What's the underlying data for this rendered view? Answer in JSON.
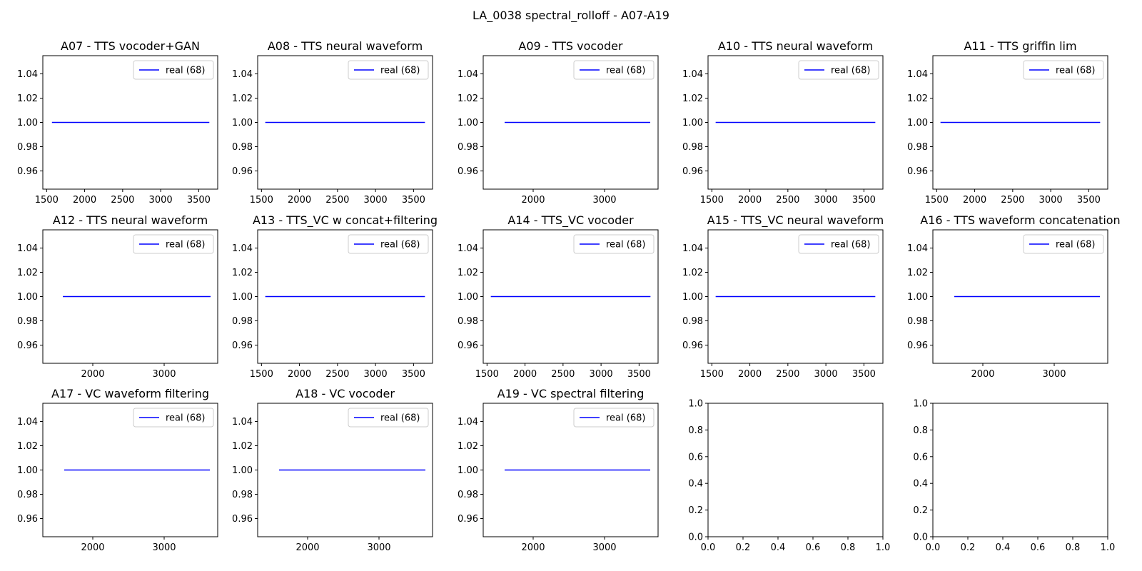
{
  "figure": {
    "title": "LA_0038 spectral_rolloff - A07-A19"
  },
  "chart_data": [
    {
      "type": "line",
      "title": "A07 - TTS vocoder+GAN",
      "xlim": [
        1450,
        3750
      ],
      "ylim": [
        0.945,
        1.055
      ],
      "x_ticks": [
        1500,
        2000,
        2500,
        3000,
        3500
      ],
      "y_ticks": [
        0.96,
        0.98,
        1.0,
        1.02,
        1.04
      ],
      "legend": "upper-right",
      "series": [
        {
          "name": "real (68)",
          "color": "#0000ff",
          "x": [
            1570,
            3640
          ],
          "y": [
            1.0,
            1.0
          ]
        }
      ]
    },
    {
      "type": "line",
      "title": "A08 - TTS neural waveform",
      "xlim": [
        1450,
        3750
      ],
      "ylim": [
        0.945,
        1.055
      ],
      "x_ticks": [
        1500,
        2000,
        2500,
        3000,
        3500
      ],
      "y_ticks": [
        0.96,
        0.98,
        1.0,
        1.02,
        1.04
      ],
      "legend": "upper-right",
      "series": [
        {
          "name": "real (68)",
          "color": "#0000ff",
          "x": [
            1550,
            3650
          ],
          "y": [
            1.0,
            1.0
          ]
        }
      ]
    },
    {
      "type": "line",
      "title": "A09 - TTS vocoder",
      "xlim": [
        1300,
        3750
      ],
      "ylim": [
        0.945,
        1.055
      ],
      "x_ticks": [
        2000,
        3000
      ],
      "y_ticks": [
        0.96,
        0.98,
        1.0,
        1.02,
        1.04
      ],
      "legend": "upper-right",
      "series": [
        {
          "name": "real (68)",
          "color": "#0000ff",
          "x": [
            1600,
            3640
          ],
          "y": [
            1.0,
            1.0
          ]
        }
      ]
    },
    {
      "type": "line",
      "title": "A10 - TTS neural waveform",
      "xlim": [
        1450,
        3750
      ],
      "ylim": [
        0.945,
        1.055
      ],
      "x_ticks": [
        1500,
        2000,
        2500,
        3000,
        3500
      ],
      "y_ticks": [
        0.96,
        0.98,
        1.0,
        1.02,
        1.04
      ],
      "legend": "upper-right",
      "series": [
        {
          "name": "real (68)",
          "color": "#0000ff",
          "x": [
            1550,
            3650
          ],
          "y": [
            1.0,
            1.0
          ]
        }
      ]
    },
    {
      "type": "line",
      "title": "A11 - TTS griffin lim",
      "xlim": [
        1450,
        3750
      ],
      "ylim": [
        0.945,
        1.055
      ],
      "x_ticks": [
        1500,
        2000,
        2500,
        3000,
        3500
      ],
      "y_ticks": [
        0.96,
        0.98,
        1.0,
        1.02,
        1.04
      ],
      "legend": "upper-right",
      "series": [
        {
          "name": "real (68)",
          "color": "#0000ff",
          "x": [
            1550,
            3650
          ],
          "y": [
            1.0,
            1.0
          ]
        }
      ]
    },
    {
      "type": "line",
      "title": "A12 - TTS neural waveform",
      "xlim": [
        1300,
        3750
      ],
      "ylim": [
        0.945,
        1.055
      ],
      "x_ticks": [
        2000,
        3000
      ],
      "y_ticks": [
        0.96,
        0.98,
        1.0,
        1.02,
        1.04
      ],
      "legend": "upper-right",
      "series": [
        {
          "name": "real (68)",
          "color": "#0000ff",
          "x": [
            1580,
            3650
          ],
          "y": [
            1.0,
            1.0
          ]
        }
      ]
    },
    {
      "type": "line",
      "title": "A13 - TTS_VC w concat+filtering",
      "xlim": [
        1450,
        3750
      ],
      "ylim": [
        0.945,
        1.055
      ],
      "x_ticks": [
        1500,
        2000,
        2500,
        3000,
        3500
      ],
      "y_ticks": [
        0.96,
        0.98,
        1.0,
        1.02,
        1.04
      ],
      "legend": "upper-right",
      "series": [
        {
          "name": "real (68)",
          "color": "#0000ff",
          "x": [
            1550,
            3650
          ],
          "y": [
            1.0,
            1.0
          ]
        }
      ]
    },
    {
      "type": "line",
      "title": "A14 - TTS_VC vocoder",
      "xlim": [
        1450,
        3750
      ],
      "ylim": [
        0.945,
        1.055
      ],
      "x_ticks": [
        1500,
        2000,
        2500,
        3000,
        3500
      ],
      "y_ticks": [
        0.96,
        0.98,
        1.0,
        1.02,
        1.04
      ],
      "legend": "upper-right",
      "series": [
        {
          "name": "real (68)",
          "color": "#0000ff",
          "x": [
            1550,
            3650
          ],
          "y": [
            1.0,
            1.0
          ]
        }
      ]
    },
    {
      "type": "line",
      "title": "A15 - TTS_VC neural waveform",
      "xlim": [
        1450,
        3750
      ],
      "ylim": [
        0.945,
        1.055
      ],
      "x_ticks": [
        1500,
        2000,
        2500,
        3000,
        3500
      ],
      "y_ticks": [
        0.96,
        0.98,
        1.0,
        1.02,
        1.04
      ],
      "legend": "upper-right",
      "series": [
        {
          "name": "real (68)",
          "color": "#0000ff",
          "x": [
            1550,
            3650
          ],
          "y": [
            1.0,
            1.0
          ]
        }
      ]
    },
    {
      "type": "line",
      "title": "A16 - TTS waveform concatenation",
      "xlim": [
        1300,
        3750
      ],
      "ylim": [
        0.945,
        1.055
      ],
      "x_ticks": [
        2000,
        3000
      ],
      "y_ticks": [
        0.96,
        0.98,
        1.0,
        1.02,
        1.04
      ],
      "legend": "upper-right",
      "series": [
        {
          "name": "real (68)",
          "color": "#0000ff",
          "x": [
            1600,
            3640
          ],
          "y": [
            1.0,
            1.0
          ]
        }
      ]
    },
    {
      "type": "line",
      "title": "A17 - VC waveform filtering",
      "xlim": [
        1300,
        3750
      ],
      "ylim": [
        0.945,
        1.055
      ],
      "x_ticks": [
        2000,
        3000
      ],
      "y_ticks": [
        0.96,
        0.98,
        1.0,
        1.02,
        1.04
      ],
      "legend": "upper-right",
      "series": [
        {
          "name": "real (68)",
          "color": "#0000ff",
          "x": [
            1600,
            3640
          ],
          "y": [
            1.0,
            1.0
          ]
        }
      ]
    },
    {
      "type": "line",
      "title": "A18 - VC vocoder",
      "xlim": [
        1300,
        3750
      ],
      "ylim": [
        0.945,
        1.055
      ],
      "x_ticks": [
        2000,
        3000
      ],
      "y_ticks": [
        0.96,
        0.98,
        1.0,
        1.02,
        1.04
      ],
      "legend": "upper-right",
      "series": [
        {
          "name": "real (68)",
          "color": "#0000ff",
          "x": [
            1600,
            3650
          ],
          "y": [
            1.0,
            1.0
          ]
        }
      ]
    },
    {
      "type": "line",
      "title": "A19 - VC spectral filtering",
      "xlim": [
        1300,
        3750
      ],
      "ylim": [
        0.945,
        1.055
      ],
      "x_ticks": [
        2000,
        3000
      ],
      "y_ticks": [
        0.96,
        0.98,
        1.0,
        1.02,
        1.04
      ],
      "legend": "upper-right",
      "series": [
        {
          "name": "real (68)",
          "color": "#0000ff",
          "x": [
            1600,
            3640
          ],
          "y": [
            1.0,
            1.0
          ]
        }
      ]
    },
    {
      "type": "line",
      "title": "",
      "xlim": [
        0,
        1
      ],
      "ylim": [
        0,
        1
      ],
      "x_ticks": [
        0.0,
        0.2,
        0.4,
        0.6,
        0.8,
        1.0
      ],
      "y_ticks": [
        0.0,
        0.2,
        0.4,
        0.6,
        0.8,
        1.0
      ],
      "series": []
    },
    {
      "type": "line",
      "title": "",
      "xlim": [
        0,
        1
      ],
      "ylim": [
        0,
        1
      ],
      "x_ticks": [
        0.0,
        0.2,
        0.4,
        0.6,
        0.8,
        1.0
      ],
      "y_ticks": [
        0.0,
        0.2,
        0.4,
        0.6,
        0.8,
        1.0
      ],
      "series": []
    }
  ]
}
